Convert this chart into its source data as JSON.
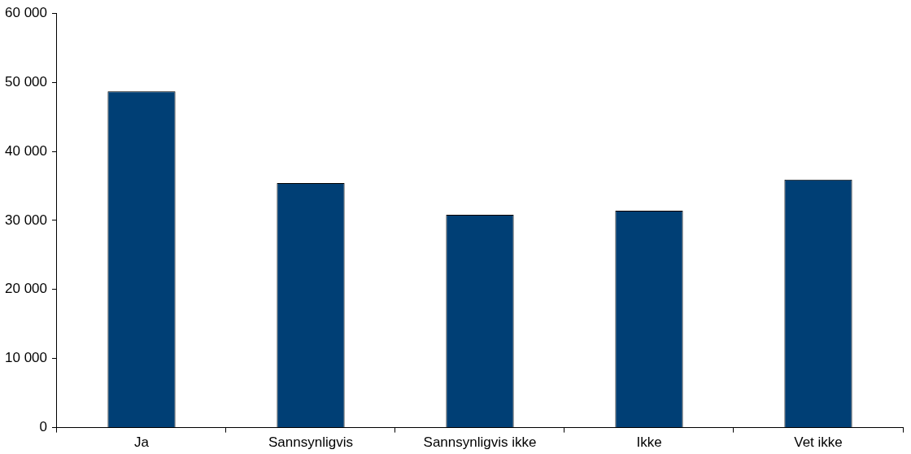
{
  "chart_data": {
    "type": "bar",
    "categories": [
      "Ja",
      "Sannsynligvis",
      "Sannsynligvis ikke",
      "Ikke",
      "Vet ikke"
    ],
    "values": [
      48700,
      35400,
      30800,
      31400,
      35900
    ],
    "color": "#003f75",
    "ylim": [
      0,
      60000
    ],
    "yticks": [
      {
        "value": 0,
        "label": "0"
      },
      {
        "value": 10000,
        "label": "10 000"
      },
      {
        "value": 20000,
        "label": "20 000"
      },
      {
        "value": 30000,
        "label": "30 000"
      },
      {
        "value": 40000,
        "label": "40 000"
      },
      {
        "value": 50000,
        "label": "50 000"
      },
      {
        "value": 60000,
        "label": "60 000"
      }
    ],
    "grid": false,
    "legend": false
  }
}
